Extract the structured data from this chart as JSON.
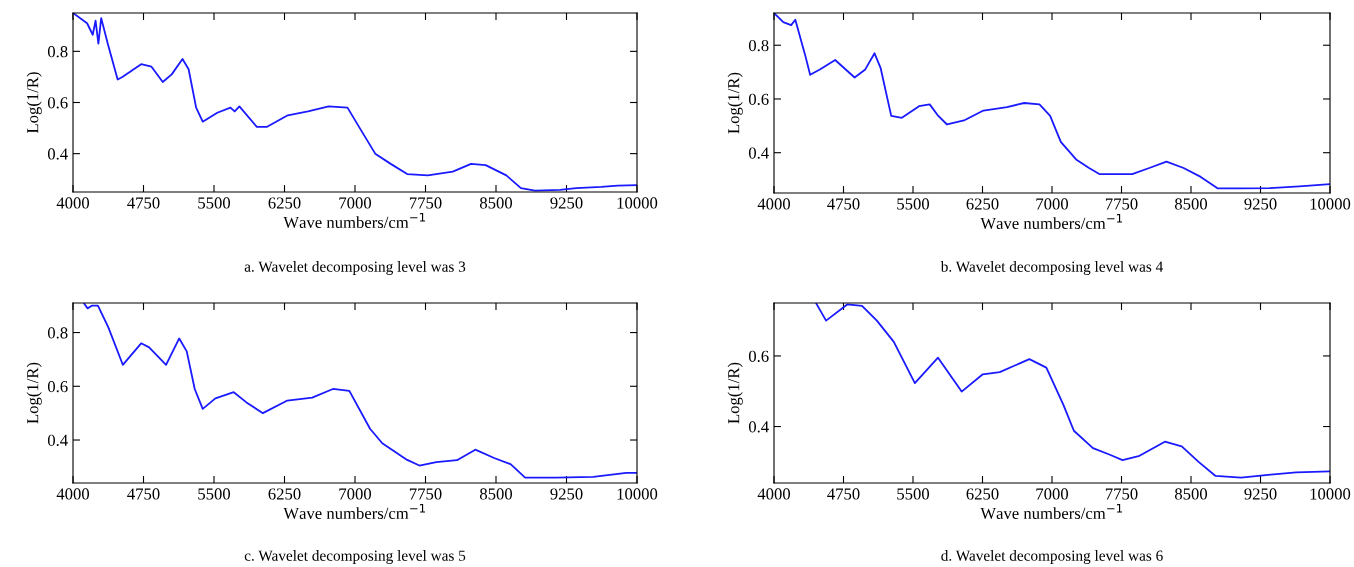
{
  "chart_data": [
    {
      "type": "line",
      "xlabel": "Wave numbers/cm$^{−1}$",
      "ylabel": "Log(1/R)",
      "annotations": [
        "a. Wavelet decomposing level was 3"
      ],
      "xlim": [
        4000,
        10000
      ],
      "xticks": [
        4000,
        4750,
        5500,
        6250,
        7000,
        7750,
        8500,
        9250,
        10000
      ],
      "ylim": [
        0.25,
        0.95
      ],
      "yticks": [
        0.4,
        0.6,
        0.8
      ],
      "grid": false,
      "legend": false,
      "series": [
        {
          "color": "#1a1aff",
          "x": [
            4000,
            4150,
            4210,
            4240,
            4270,
            4300,
            4370,
            4475,
            4525,
            4725,
            4835,
            4955,
            5050,
            5165,
            5230,
            5310,
            5380,
            5535,
            5675,
            5720,
            5770,
            5955,
            6065,
            6285,
            6500,
            6720,
            6920,
            7075,
            7215,
            7380,
            7555,
            7775,
            8040,
            8235,
            8390,
            8610,
            8765,
            8915,
            9180,
            9355,
            9620,
            9795,
            10000
          ],
          "values": [
            0.95,
            0.91,
            0.865,
            0.92,
            0.83,
            0.93,
            0.83,
            0.69,
            0.7,
            0.75,
            0.74,
            0.68,
            0.71,
            0.77,
            0.73,
            0.58,
            0.525,
            0.56,
            0.58,
            0.565,
            0.585,
            0.505,
            0.505,
            0.55,
            0.565,
            0.585,
            0.58,
            0.485,
            0.4,
            0.36,
            0.32,
            0.315,
            0.33,
            0.36,
            0.355,
            0.315,
            0.265,
            0.255,
            0.258,
            0.265,
            0.27,
            0.275,
            0.277
          ]
        }
      ]
    },
    {
      "type": "line",
      "xlabel": "Wave numbers/cm$^{−1}$",
      "ylabel": "Log(1/R)",
      "annotations": [
        "b. Wavelet decomposing level was 4"
      ],
      "xlim": [
        4000,
        10000
      ],
      "xticks": [
        4000,
        4750,
        5500,
        6250,
        7000,
        7750,
        8500,
        9250,
        10000
      ],
      "ylim": [
        0.25,
        0.92
      ],
      "yticks": [
        0.4,
        0.6,
        0.8
      ],
      "grid": false,
      "legend": false,
      "series": [
        {
          "color": "#1a1aff",
          "x": [
            4000,
            4100,
            4185,
            4230,
            4335,
            4390,
            4495,
            4660,
            4870,
            4985,
            5085,
            5150,
            5265,
            5380,
            5565,
            5680,
            5765,
            5867,
            6050,
            6260,
            6515,
            6700,
            6865,
            6980,
            7095,
            7260,
            7400,
            7515,
            7865,
            8050,
            8235,
            8420,
            8605,
            8790,
            9025,
            9350,
            9670,
            10000
          ],
          "values": [
            0.92,
            0.886,
            0.875,
            0.895,
            0.765,
            0.69,
            0.71,
            0.745,
            0.68,
            0.71,
            0.77,
            0.716,
            0.537,
            0.53,
            0.573,
            0.58,
            0.54,
            0.505,
            0.52,
            0.557,
            0.57,
            0.585,
            0.58,
            0.537,
            0.44,
            0.375,
            0.343,
            0.32,
            0.32,
            0.343,
            0.367,
            0.343,
            0.31,
            0.267,
            0.267,
            0.268,
            0.275,
            0.283
          ]
        }
      ]
    },
    {
      "type": "line",
      "xlabel": "Wave numbers/cm$^{−1}$",
      "ylabel": "Log(1/R)",
      "annotations": [
        "c. Wavelet decomposing level was 5"
      ],
      "xlim": [
        4000,
        10000
      ],
      "xticks": [
        4000,
        4750,
        5500,
        6250,
        7000,
        7750,
        8500,
        9250,
        10000
      ],
      "ylim": [
        0.24,
        0.91
      ],
      "yticks": [
        0.4,
        0.6,
        0.8
      ],
      "grid": false,
      "legend": false,
      "series": [
        {
          "color": "#1a1aff",
          "x": [
            4120,
            4155,
            4200,
            4265,
            4375,
            4530,
            4725,
            4810,
            4990,
            5130,
            5210,
            5295,
            5380,
            5515,
            5710,
            5845,
            6020,
            6280,
            6545,
            6765,
            6940,
            7160,
            7290,
            7555,
            7685,
            7865,
            8085,
            8280,
            8480,
            8655,
            8810,
            9140,
            9535,
            9885,
            10000
          ],
          "values": [
            0.907,
            0.89,
            0.9,
            0.9,
            0.82,
            0.68,
            0.76,
            0.745,
            0.68,
            0.778,
            0.73,
            0.59,
            0.516,
            0.555,
            0.578,
            0.54,
            0.5,
            0.547,
            0.558,
            0.59,
            0.583,
            0.442,
            0.388,
            0.326,
            0.305,
            0.318,
            0.325,
            0.364,
            0.333,
            0.31,
            0.26,
            0.26,
            0.263,
            0.278,
            0.278
          ]
        }
      ]
    },
    {
      "type": "line",
      "xlabel": "Wave numbers/cm$^{−1}$",
      "ylabel": "Log(1/R)",
      "annotations": [
        "d. Wavelet decomposing level was 6"
      ],
      "xlim": [
        4000,
        10000
      ],
      "xticks": [
        4000,
        4750,
        5500,
        6250,
        7000,
        7750,
        8500,
        9250,
        10000
      ],
      "ylim": [
        0.24,
        0.75
      ],
      "yticks": [
        0.4,
        0.6
      ],
      "grid": false,
      "legend": false,
      "series": [
        {
          "color": "#1a1aff",
          "x": [
            4457,
            4562,
            4790,
            4950,
            5110,
            5293,
            5520,
            5770,
            6025,
            6253,
            6436,
            6756,
            6939,
            7122,
            7236,
            7442,
            7625,
            7761,
            7944,
            8218,
            8400,
            8582,
            8765,
            9040,
            9360,
            9635,
            10000
          ],
          "values": [
            0.748,
            0.7,
            0.746,
            0.742,
            0.7,
            0.64,
            0.523,
            0.595,
            0.499,
            0.548,
            0.554,
            0.591,
            0.567,
            0.462,
            0.388,
            0.339,
            0.32,
            0.305,
            0.317,
            0.357,
            0.344,
            0.3,
            0.26,
            0.255,
            0.264,
            0.27,
            0.273
          ]
        }
      ]
    }
  ]
}
